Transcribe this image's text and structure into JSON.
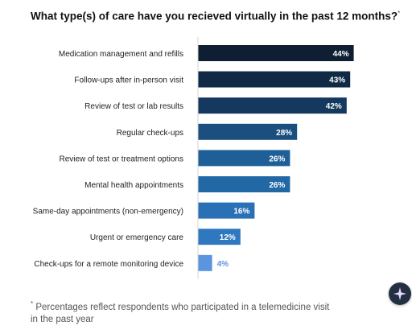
{
  "title": "What type(s) of care have you recieved virtually in the past 12 months?",
  "title_mark": "*",
  "footnote": {
    "mark": "*",
    "text": "Percentages reflect respondents who participated in a telemedicine visit in the past year"
  },
  "ai_button": {
    "icon": "sparkle-icon"
  },
  "chart_data": {
    "type": "bar",
    "orientation": "horizontal",
    "categories": [
      "Medication management and refills",
      "Follow-ups after in-person visit",
      "Review of test or lab results",
      "Regular check-ups",
      "Review of test or treatment options",
      "Mental health appointments",
      "Same-day appointments (non-emergency)",
      "Urgent or emergency care",
      "Check-ups for a remote monitoring device"
    ],
    "values": [
      44,
      43,
      42,
      28,
      26,
      26,
      16,
      12,
      4
    ],
    "value_labels": [
      "44%",
      "43%",
      "42%",
      "28%",
      "26%",
      "26%",
      "16%",
      "12%",
      "4%"
    ],
    "colors": [
      "#0f1f33",
      "#102a46",
      "#14385e",
      "#1b4f80",
      "#1f5f97",
      "#2268a5",
      "#2a70b5",
      "#2f78bf",
      "#5b95df"
    ],
    "xlim": [
      0,
      48
    ],
    "grid": false
  }
}
